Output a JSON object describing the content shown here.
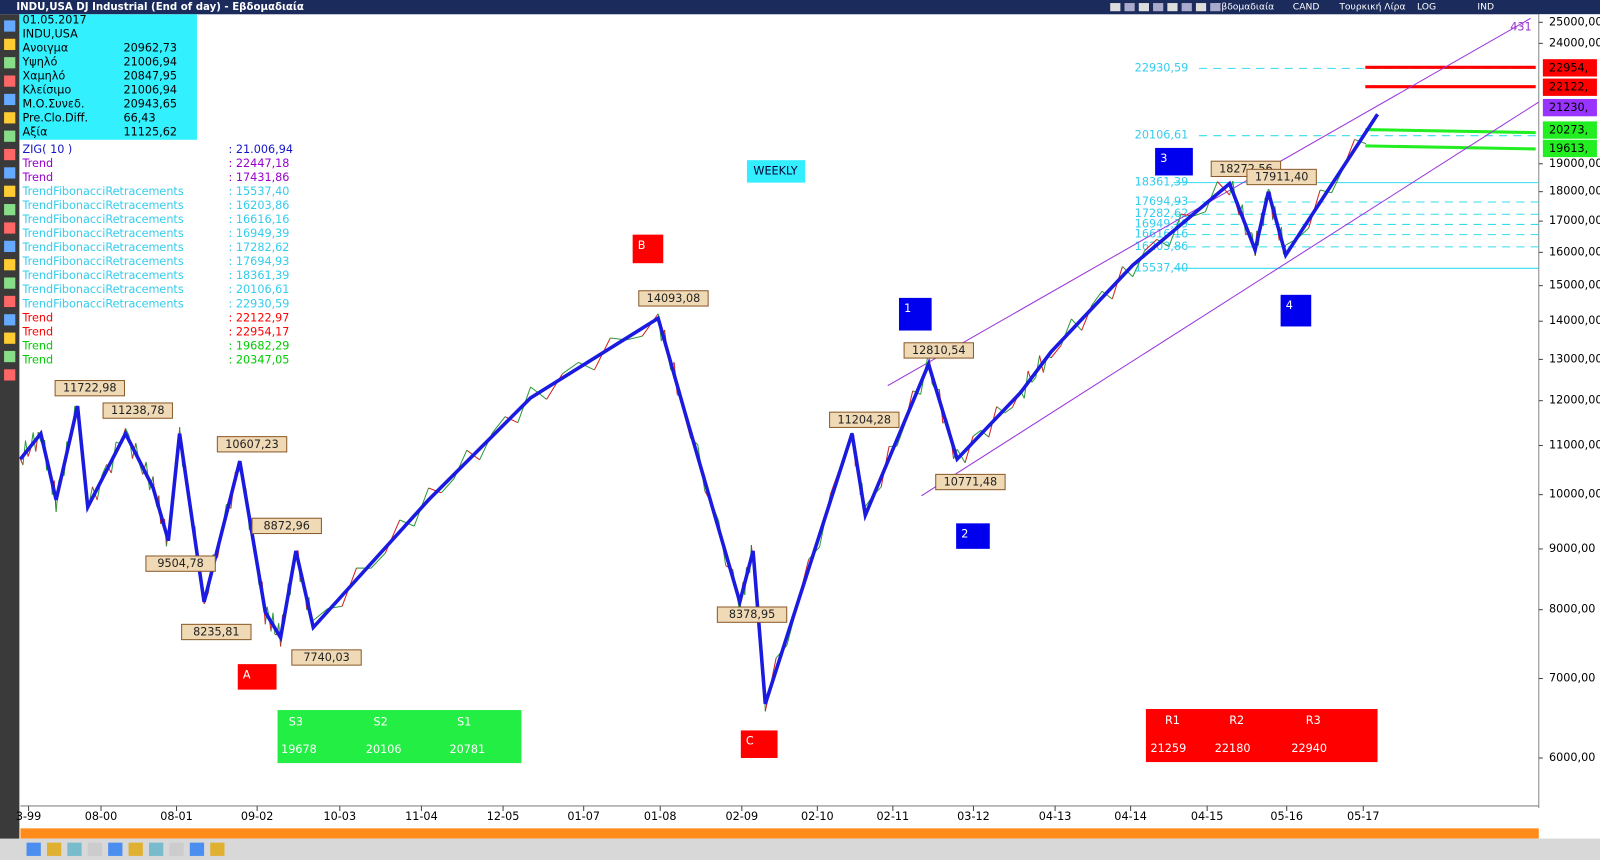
{
  "title_bar": {
    "title": "INDU,USA DJ Industrial (End of day) - Εβδομαδιαία",
    "toolbar": [
      "Εβδομαδιαία",
      "CAND",
      "Τουρκική Λίρα",
      "LOG",
      "IND"
    ]
  },
  "info_panel": {
    "date": "01.05.2017",
    "symbol": "INDU,USA",
    "rows": [
      {
        "label": "Ανοιγμα",
        "value": "20962,73"
      },
      {
        "label": "Υψηλό",
        "value": "21006,94"
      },
      {
        "label": "Χαμηλό",
        "value": "20847,95"
      },
      {
        "label": "Κλείσιμο",
        "value": "21006,94"
      },
      {
        "label": "Μ.Ο.Συνεδ.",
        "value": "20943,65"
      },
      {
        "label": "Pre.Clo.Diff.",
        "value": "66,43"
      },
      {
        "label": "Αξία",
        "value": "11125,62"
      }
    ]
  },
  "indicators": [
    {
      "name": "ZIG( 10 )",
      "value": ": 21.006,94",
      "color": "#1414c8"
    },
    {
      "name": "Trend",
      "value": ": 22447,18",
      "color": "#9900cc"
    },
    {
      "name": "Trend",
      "value": ": 17431,86",
      "color": "#9900cc"
    },
    {
      "name": "TrendFibonacciRetracements",
      "value": ": 15537,40",
      "color": "#33ccee"
    },
    {
      "name": "TrendFibonacciRetracements",
      "value": ": 16203,86",
      "color": "#33ccee"
    },
    {
      "name": "TrendFibonacciRetracements",
      "value": ": 16616,16",
      "color": "#33ccee"
    },
    {
      "name": "TrendFibonacciRetracements",
      "value": ": 16949,39",
      "color": "#33ccee"
    },
    {
      "name": "TrendFibonacciRetracements",
      "value": ": 17282,62",
      "color": "#33ccee"
    },
    {
      "name": "TrendFibonacciRetracements",
      "value": ": 17694,93",
      "color": "#33ccee"
    },
    {
      "name": "TrendFibonacciRetracements",
      "value": ": 18361,39",
      "color": "#33ccee"
    },
    {
      "name": "TrendFibonacciRetracements",
      "value": ": 20106,61",
      "color": "#33ccee"
    },
    {
      "name": "TrendFibonacciRetracements",
      "value": ": 22930,59",
      "color": "#33ccee"
    },
    {
      "name": "Trend",
      "value": ": 22122,97",
      "color": "#ff0000"
    },
    {
      "name": "Trend",
      "value": ": 22954,17",
      "color": "#ff0000"
    },
    {
      "name": "Trend",
      "value": ": 19682,29",
      "color": "#00cc00"
    },
    {
      "name": "Trend",
      "value": ": 20347,05",
      "color": "#00cc00"
    }
  ],
  "price_axis": {
    "scale": "log",
    "ticks": [
      {
        "value": 25000,
        "label": "25000,00"
      },
      {
        "value": 24000,
        "label": "24000,00"
      },
      {
        "value": 19000,
        "label": "19000,00"
      },
      {
        "value": 18000,
        "label": "18000,00"
      },
      {
        "value": 17000,
        "label": "17000,00"
      },
      {
        "value": 16000,
        "label": "16000,00"
      },
      {
        "value": 15000,
        "label": "15000,00"
      },
      {
        "value": 14000,
        "label": "14000,00"
      },
      {
        "value": 13000,
        "label": "13000,00"
      },
      {
        "value": 12000,
        "label": "12000,00"
      },
      {
        "value": 11000,
        "label": "11000,00"
      },
      {
        "value": 10000,
        "label": "10000,00"
      },
      {
        "value": 9000,
        "label": "9000,00"
      },
      {
        "value": 8000,
        "label": "8000,00"
      },
      {
        "value": 7000,
        "label": "7000,00"
      },
      {
        "value": 6000,
        "label": "6000,00"
      }
    ]
  },
  "price_tags": [
    {
      "label": "22954,",
      "color": "#ff0000"
    },
    {
      "label": "22122,",
      "color": "#ff0000"
    },
    {
      "label": "21230,",
      "color": "#9933ff"
    },
    {
      "label": "20273,",
      "color": "#22ee22"
    },
    {
      "label": "19613,",
      "color": "#22ee22"
    }
  ],
  "corner_note": "431",
  "date_axis": [
    "3-99",
    "08-00",
    "08-01",
    "09-02",
    "10-03",
    "11-04",
    "12-05",
    "01-07",
    "01-08",
    "02-09",
    "02-10",
    "02-11",
    "03-12",
    "04-13",
    "04-14",
    "04-15",
    "05-16",
    "05-17"
  ],
  "zigzag_labels": [
    "11722,98",
    "11238,78",
    "10607,23",
    "9504,78",
    "8872,96",
    "8235,81",
    "7740,03",
    "14093,08",
    "8378,95",
    "11204,28",
    "12810,54",
    "10771,48",
    "18272,56",
    "17911,40"
  ],
  "wave_labels": [
    "A",
    "B",
    "C",
    "1",
    "2",
    "3",
    "4"
  ],
  "fib_labels": [
    "22930,59",
    "20106,61",
    "18361,39",
    "17694,93",
    "17282,62",
    "16949,39",
    "16616,16",
    "16203,86",
    "15537,40"
  ],
  "timeframe": "WEEKLY",
  "support": {
    "headers": [
      "S3",
      "S2",
      "S1"
    ],
    "values": [
      "19678",
      "20106",
      "20781"
    ]
  },
  "resistance": {
    "headers": [
      "R1",
      "R2",
      "R3"
    ],
    "values": [
      "21259",
      "22180",
      "22940"
    ]
  }
}
